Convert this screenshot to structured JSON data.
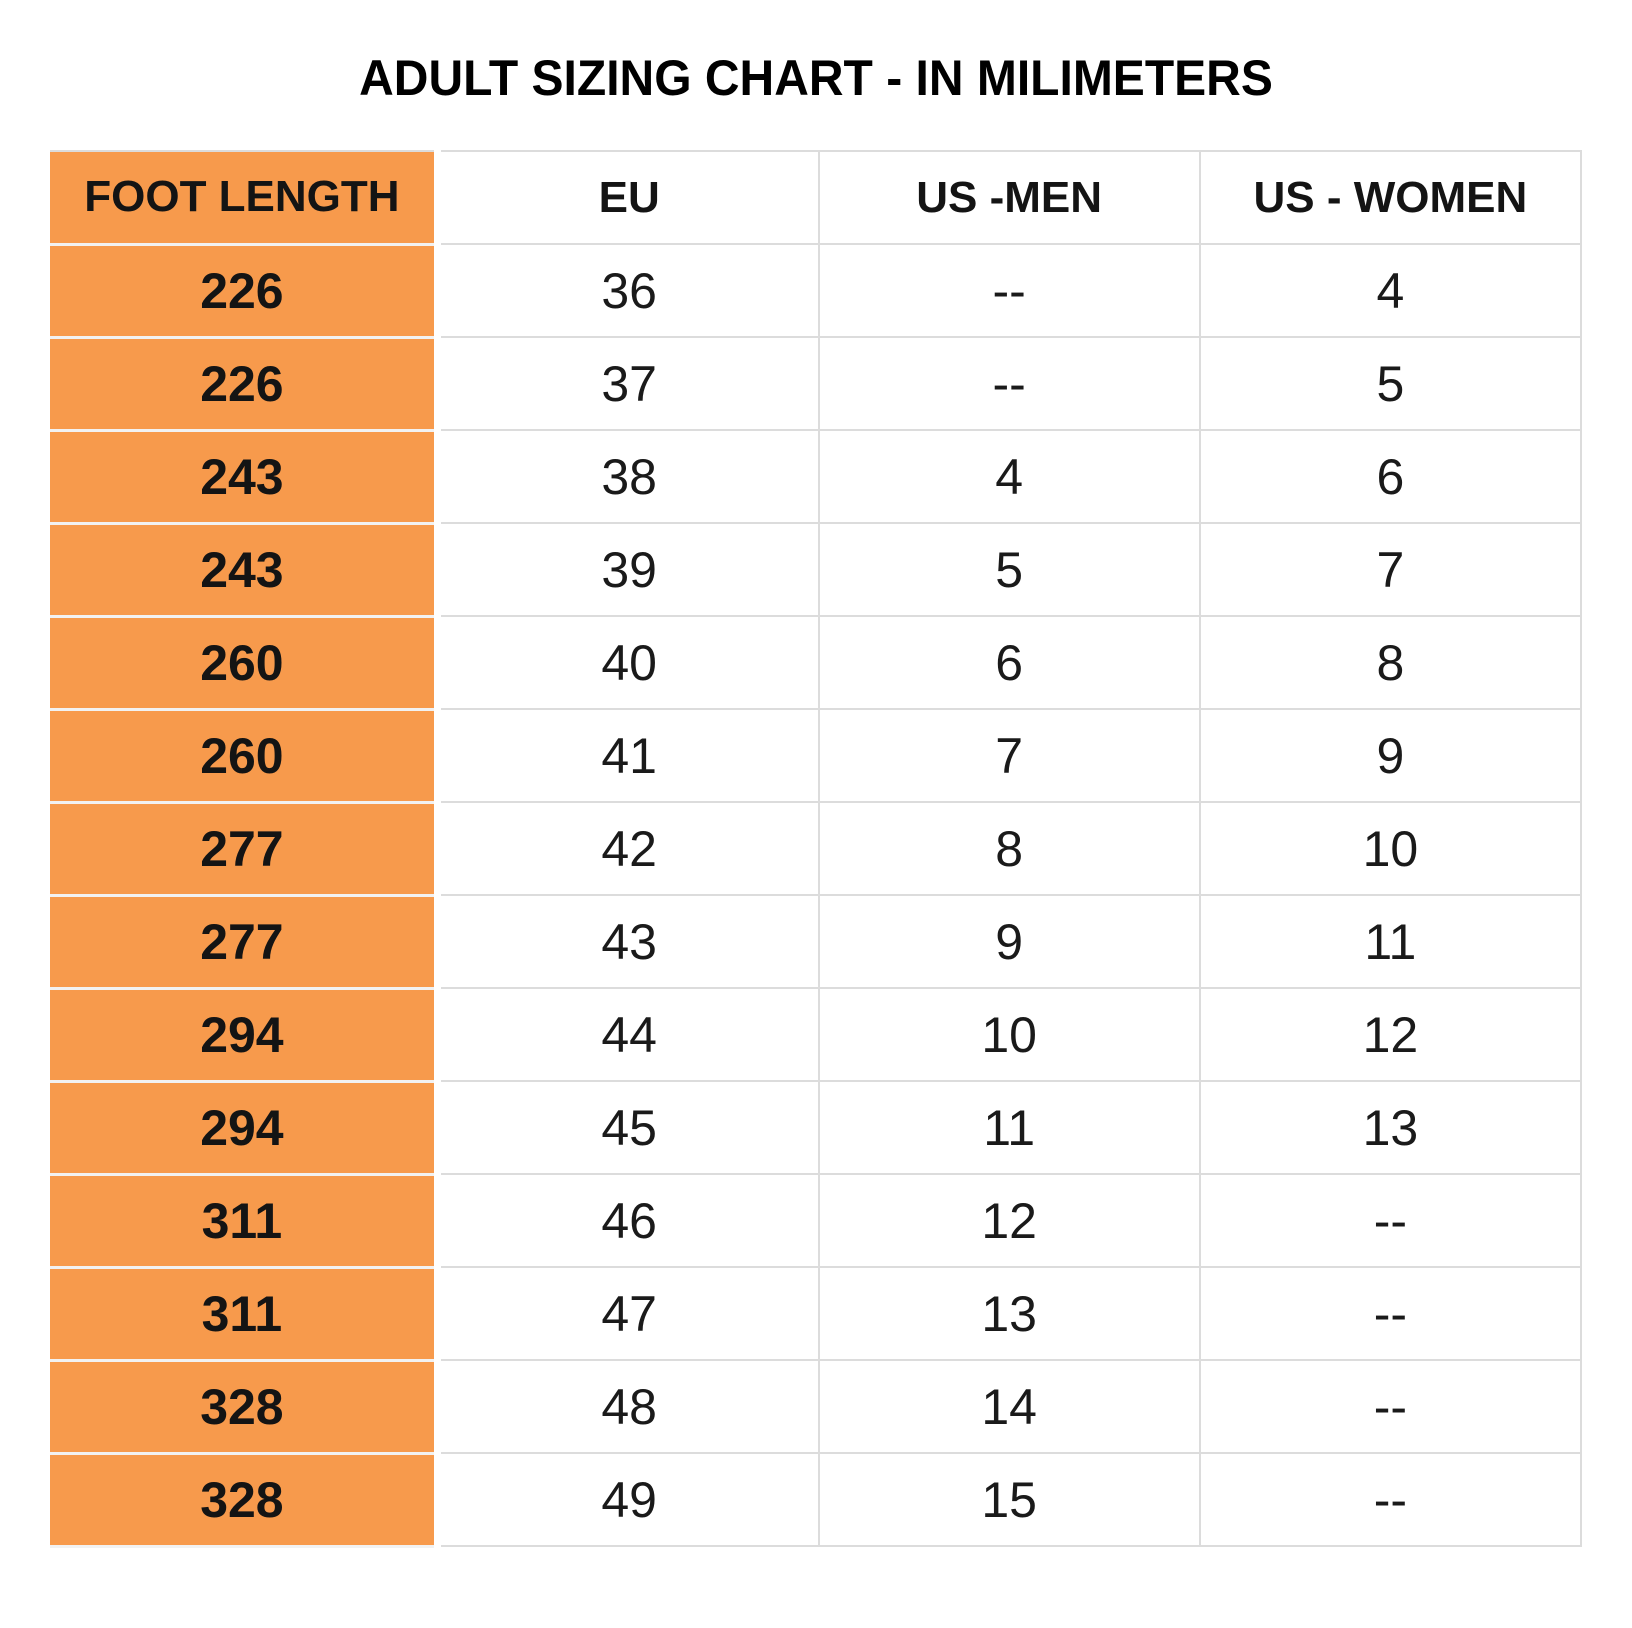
{
  "title": "ADULT SIZING CHART - IN MILIMETERS",
  "chart_data": {
    "type": "table",
    "title": "ADULT SIZING CHART - IN MILIMETERS",
    "columns": [
      "FOOT LENGTH",
      "EU",
      "US -MEN",
      "US - WOMEN"
    ],
    "rows": [
      [
        "226",
        "36",
        "--",
        "4"
      ],
      [
        "226",
        "37",
        "--",
        "5"
      ],
      [
        "243",
        "38",
        "4",
        "6"
      ],
      [
        "243",
        "39",
        "5",
        "7"
      ],
      [
        "260",
        "40",
        "6",
        "8"
      ],
      [
        "260",
        "41",
        "7",
        "9"
      ],
      [
        "277",
        "42",
        "8",
        "10"
      ],
      [
        "277",
        "43",
        "9",
        "11"
      ],
      [
        "294",
        "44",
        "10",
        "12"
      ],
      [
        "294",
        "45",
        "11",
        "13"
      ],
      [
        "311",
        "46",
        "12",
        "--"
      ],
      [
        "311",
        "47",
        "13",
        "--"
      ],
      [
        "328",
        "48",
        "14",
        "--"
      ],
      [
        "328",
        "49",
        "15",
        "--"
      ]
    ],
    "notes": {
      "unit": "milimeters",
      "missing_value_marker": "--"
    }
  },
  "colors": {
    "accent_orange": "#F79A4C",
    "grid_gray": "#DCDCDC",
    "text_black": "#141414",
    "background": "#FFFFFF"
  }
}
